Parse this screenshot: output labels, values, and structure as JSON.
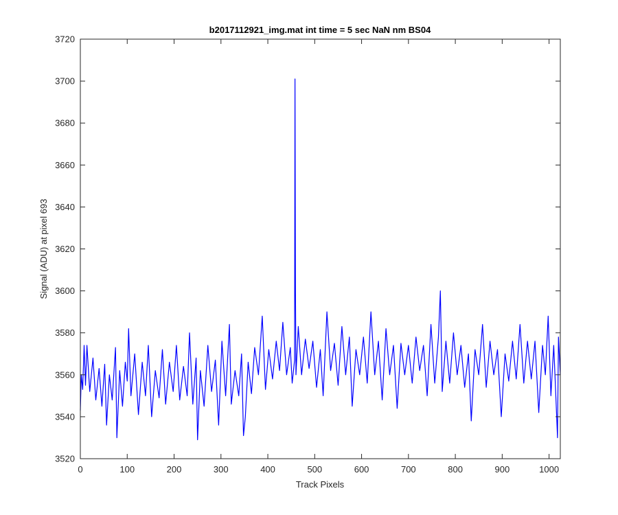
{
  "figure": {
    "title": "b2017112921_img.mat int time = 5 sec  NaN nm BS04"
  },
  "chart_data": {
    "type": "line",
    "title": "b2017112921_img.mat int time = 5 sec  NaN nm BS04",
    "xlabel": "Track Pixels",
    "ylabel": "Signal (ADU) at pixel 693",
    "xlim": [
      0,
      1024
    ],
    "ylim": [
      3520,
      3720
    ],
    "xticks": [
      0,
      100,
      200,
      300,
      400,
      500,
      600,
      700,
      800,
      900,
      1000
    ],
    "yticks": [
      3520,
      3540,
      3560,
      3580,
      3600,
      3620,
      3640,
      3660,
      3680,
      3700,
      3720
    ],
    "grid": false,
    "legend": "none",
    "series": [
      {
        "color": "#0000ff",
        "points_approx": [
          [
            0,
            3543
          ],
          [
            2,
            3560
          ],
          [
            5,
            3553
          ],
          [
            8,
            3574
          ],
          [
            11,
            3555
          ],
          [
            14,
            3574
          ],
          [
            20,
            3552
          ],
          [
            27,
            3568
          ],
          [
            33,
            3548
          ],
          [
            40,
            3563
          ],
          [
            46,
            3545
          ],
          [
            52,
            3565
          ],
          [
            56,
            3536
          ],
          [
            62,
            3560
          ],
          [
            68,
            3548
          ],
          [
            75,
            3573
          ],
          [
            78,
            3530
          ],
          [
            84,
            3562
          ],
          [
            90,
            3545
          ],
          [
            96,
            3566
          ],
          [
            100,
            3557
          ],
          [
            103,
            3582
          ],
          [
            108,
            3550
          ],
          [
            116,
            3570
          ],
          [
            124,
            3541
          ],
          [
            132,
            3566
          ],
          [
            139,
            3550
          ],
          [
            145,
            3574
          ],
          [
            152,
            3540
          ],
          [
            160,
            3562
          ],
          [
            168,
            3549
          ],
          [
            175,
            3572
          ],
          [
            182,
            3546
          ],
          [
            190,
            3566
          ],
          [
            198,
            3552
          ],
          [
            205,
            3574
          ],
          [
            212,
            3548
          ],
          [
            220,
            3564
          ],
          [
            228,
            3550
          ],
          [
            233,
            3580
          ],
          [
            240,
            3546
          ],
          [
            247,
            3568
          ],
          [
            250,
            3529
          ],
          [
            256,
            3562
          ],
          [
            264,
            3545
          ],
          [
            272,
            3574
          ],
          [
            280,
            3552
          ],
          [
            288,
            3567
          ],
          [
            295,
            3536
          ],
          [
            302,
            3576
          ],
          [
            310,
            3550
          ],
          [
            318,
            3584
          ],
          [
            322,
            3546
          ],
          [
            330,
            3562
          ],
          [
            338,
            3550
          ],
          [
            344,
            3570
          ],
          [
            348,
            3531
          ],
          [
            352,
            3540
          ],
          [
            358,
            3566
          ],
          [
            365,
            3551
          ],
          [
            372,
            3573
          ],
          [
            380,
            3560
          ],
          [
            388,
            3588
          ],
          [
            395,
            3553
          ],
          [
            402,
            3572
          ],
          [
            410,
            3558
          ],
          [
            418,
            3576
          ],
          [
            425,
            3562
          ],
          [
            432,
            3585
          ],
          [
            440,
            3560
          ],
          [
            448,
            3573
          ],
          [
            452,
            3556
          ],
          [
            457,
            3567
          ],
          [
            458,
            3701
          ],
          [
            459,
            3600
          ],
          [
            460,
            3560
          ],
          [
            465,
            3583
          ],
          [
            472,
            3560
          ],
          [
            480,
            3577
          ],
          [
            488,
            3563
          ],
          [
            496,
            3576
          ],
          [
            504,
            3554
          ],
          [
            512,
            3572
          ],
          [
            518,
            3550
          ],
          [
            526,
            3590
          ],
          [
            534,
            3562
          ],
          [
            542,
            3575
          ],
          [
            550,
            3555
          ],
          [
            558,
            3583
          ],
          [
            566,
            3560
          ],
          [
            574,
            3578
          ],
          [
            580,
            3545
          ],
          [
            588,
            3572
          ],
          [
            596,
            3560
          ],
          [
            604,
            3578
          ],
          [
            612,
            3556
          ],
          [
            620,
            3590
          ],
          [
            628,
            3560
          ],
          [
            636,
            3576
          ],
          [
            644,
            3548
          ],
          [
            652,
            3582
          ],
          [
            660,
            3560
          ],
          [
            668,
            3574
          ],
          [
            676,
            3544
          ],
          [
            684,
            3575
          ],
          [
            692,
            3560
          ],
          [
            700,
            3574
          ],
          [
            708,
            3556
          ],
          [
            716,
            3578
          ],
          [
            724,
            3562
          ],
          [
            732,
            3574
          ],
          [
            740,
            3550
          ],
          [
            748,
            3584
          ],
          [
            756,
            3556
          ],
          [
            764,
            3578
          ],
          [
            768,
            3600
          ],
          [
            772,
            3552
          ],
          [
            780,
            3576
          ],
          [
            788,
            3556
          ],
          [
            796,
            3580
          ],
          [
            804,
            3560
          ],
          [
            812,
            3574
          ],
          [
            820,
            3554
          ],
          [
            828,
            3570
          ],
          [
            834,
            3538
          ],
          [
            842,
            3572
          ],
          [
            850,
            3560
          ],
          [
            858,
            3584
          ],
          [
            866,
            3554
          ],
          [
            874,
            3576
          ],
          [
            882,
            3560
          ],
          [
            890,
            3572
          ],
          [
            898,
            3540
          ],
          [
            906,
            3570
          ],
          [
            914,
            3557
          ],
          [
            922,
            3576
          ],
          [
            930,
            3558
          ],
          [
            938,
            3584
          ],
          [
            946,
            3556
          ],
          [
            954,
            3576
          ],
          [
            962,
            3558
          ],
          [
            970,
            3576
          ],
          [
            978,
            3542
          ],
          [
            986,
            3574
          ],
          [
            992,
            3560
          ],
          [
            998,
            3588
          ],
          [
            1004,
            3550
          ],
          [
            1010,
            3574
          ],
          [
            1014,
            3552
          ],
          [
            1018,
            3530
          ],
          [
            1020,
            3578
          ],
          [
            1024,
            3560
          ]
        ]
      }
    ]
  }
}
